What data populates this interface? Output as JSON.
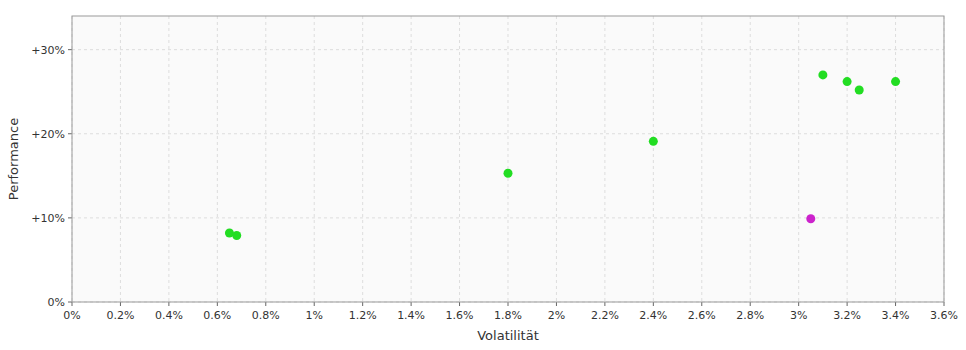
{
  "chart_data": {
    "type": "scatter",
    "xlabel": "Volatilität",
    "ylabel": "Performance",
    "series": [
      {
        "color": "#22dd22",
        "x": [
          0.0065,
          0.0068,
          0.018,
          0.024,
          0.031,
          0.032,
          0.0325,
          0.034
        ],
        "values": [
          0.082,
          0.079,
          0.153,
          0.191,
          0.27,
          0.262,
          0.252,
          0.262
        ]
      },
      {
        "color": "#cc22cc",
        "x": [
          0.0305
        ],
        "values": [
          0.099
        ]
      }
    ],
    "xlim": [
      0.0,
      0.036
    ],
    "ylim": [
      0.0,
      0.34
    ],
    "xticks": [
      {
        "value": 0.0,
        "label": "0%"
      },
      {
        "value": 0.002,
        "label": "0.2%"
      },
      {
        "value": 0.004,
        "label": "0.4%"
      },
      {
        "value": 0.006,
        "label": "0.6%"
      },
      {
        "value": 0.008,
        "label": "0.8%"
      },
      {
        "value": 0.01,
        "label": "1%"
      },
      {
        "value": 0.012,
        "label": "1.2%"
      },
      {
        "value": 0.014,
        "label": "1.4%"
      },
      {
        "value": 0.016,
        "label": "1.6%"
      },
      {
        "value": 0.018,
        "label": "1.8%"
      },
      {
        "value": 0.02,
        "label": "2%"
      },
      {
        "value": 0.022,
        "label": "2.2%"
      },
      {
        "value": 0.024,
        "label": "2.4%"
      },
      {
        "value": 0.026,
        "label": "2.6%"
      },
      {
        "value": 0.028,
        "label": "2.8%"
      },
      {
        "value": 0.03,
        "label": "3%"
      },
      {
        "value": 0.032,
        "label": "3.2%"
      },
      {
        "value": 0.034,
        "label": "3.4%"
      },
      {
        "value": 0.036,
        "label": "3.6%"
      }
    ],
    "yticks": [
      {
        "value": 0.0,
        "label": "0%"
      },
      {
        "value": 0.1,
        "label": "+10%"
      },
      {
        "value": 0.2,
        "label": "+20%"
      },
      {
        "value": 0.3,
        "label": "+30%"
      }
    ],
    "grid": true
  }
}
